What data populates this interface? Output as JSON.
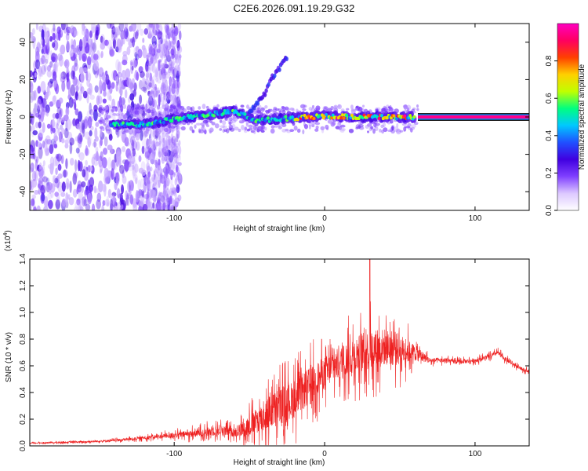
{
  "title": "C2E6.2026.091.19.29.G32",
  "chart_data": [
    {
      "type": "heatmap",
      "name": "spectrogram",
      "xlabel": "Height of straight line (km)",
      "ylabel": "Frequency (Hz)",
      "xlim": [
        -196,
        136
      ],
      "ylim": [
        -50,
        50
      ],
      "xticks": [
        -100,
        0,
        100
      ],
      "xtick_labels": [
        "-100",
        "0",
        "100"
      ],
      "yticks": [
        -40,
        -20,
        0,
        20,
        40
      ],
      "ytick_labels": [
        "-40",
        "-20",
        "0",
        "20",
        "40"
      ],
      "colorbar": {
        "label": "Normalized spectral amplitude",
        "range": [
          0,
          1
        ],
        "ticks": [
          0.0,
          0.2,
          0.4,
          0.6,
          0.8
        ],
        "tick_labels": [
          "0.0",
          "0.2",
          "0.4",
          "0.6",
          "0.8"
        ],
        "colors": [
          "#ffffff",
          "#dcc8ff",
          "#8040ff",
          "#4000e0",
          "#2050ff",
          "#00c8ff",
          "#00ff80",
          "#c0ff00",
          "#ffd000",
          "#ff4000",
          "#ff0060",
          "#ff00c0"
        ]
      },
      "features": {
        "main_track": [
          [
            -142,
            -4
          ],
          [
            -120,
            -4
          ],
          [
            -100,
            -1
          ],
          [
            -80,
            1
          ],
          [
            -60,
            3
          ],
          [
            -45,
            -2
          ],
          [
            -30,
            -1
          ],
          [
            -10,
            0
          ],
          [
            0,
            0.5
          ],
          [
            20,
            0
          ],
          [
            40,
            0
          ],
          [
            60,
            0
          ]
        ],
        "steady_line": {
          "x_start": 62,
          "x_end": 136,
          "freq": 0
        },
        "branch_track": [
          [
            -50,
            2
          ],
          [
            -40,
            12
          ],
          [
            -35,
            21
          ],
          [
            -30,
            26
          ],
          [
            -25,
            32
          ]
        ]
      }
    },
    {
      "type": "line",
      "name": "snr",
      "xlabel": "Height of straight line (km)",
      "ylabel": "SNR (10 * v/v)",
      "multiplier": "(x10",
      "multiplier_exp": "4",
      "multiplier_close": ")",
      "xlim": [
        -196,
        136
      ],
      "ylim": [
        0,
        1.4
      ],
      "xticks": [
        -100,
        0,
        100
      ],
      "xtick_labels": [
        "-100",
        "0",
        "100"
      ],
      "yticks": [
        0.0,
        0.2,
        0.4,
        0.6,
        0.8,
        1.0,
        1.2,
        1.4
      ],
      "ytick_labels": [
        "0.0",
        "0.2",
        "0.4",
        "0.6",
        "0.8",
        "1.0",
        "1.2",
        "1.4"
      ],
      "color": "#ee2020",
      "envelope": {
        "x": [
          -196,
          -160,
          -140,
          -120,
          -100,
          -80,
          -70,
          -60,
          -50,
          -40,
          -30,
          -20,
          -10,
          0,
          10,
          20,
          30,
          40,
          50,
          60,
          70,
          80,
          90,
          100,
          110,
          115,
          120,
          130,
          136
        ],
        "base": [
          0.02,
          0.03,
          0.04,
          0.06,
          0.08,
          0.1,
          0.12,
          0.1,
          0.15,
          0.22,
          0.3,
          0.35,
          0.45,
          0.55,
          0.62,
          0.68,
          0.72,
          0.74,
          0.72,
          0.7,
          0.64,
          0.64,
          0.63,
          0.64,
          0.67,
          0.7,
          0.65,
          0.58,
          0.56
        ],
        "spread": [
          0.01,
          0.015,
          0.02,
          0.03,
          0.05,
          0.08,
          0.1,
          0.08,
          0.2,
          0.3,
          0.35,
          0.35,
          0.35,
          0.3,
          0.3,
          0.35,
          0.38,
          0.35,
          0.3,
          0.15,
          0.05,
          0.04,
          0.04,
          0.04,
          0.04,
          0.04,
          0.04,
          0.03,
          0.03
        ]
      },
      "peak": {
        "x": 30,
        "y": 1.42
      }
    }
  ]
}
